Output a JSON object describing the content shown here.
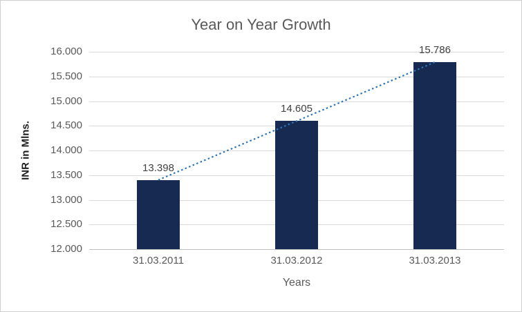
{
  "chart_data": {
    "type": "bar",
    "title": "Year on Year Growth",
    "xlabel": "Years",
    "ylabel": "INR in Mlns.",
    "categories": [
      "31.03.2011",
      "31.03.2012",
      "31.03.2013"
    ],
    "values": [
      13.398,
      14.605,
      15.786
    ],
    "data_labels": [
      "13.398",
      "14.605",
      "15.786"
    ],
    "ylim": [
      12.0,
      16.0
    ],
    "ytick_step": 0.5,
    "ytick_labels": [
      "12.000",
      "12.500",
      "13.000",
      "13.500",
      "14.000",
      "14.500",
      "15.000",
      "15.500",
      "16.000"
    ],
    "grid": true,
    "legend": "none",
    "trendline": true,
    "colors": {
      "bar": "#162a52",
      "trendline": "#2e75b6",
      "gridline": "#d9d9d9",
      "axis_line": "#bfbfbf",
      "tick_text": "#595959",
      "title_text": "#595959",
      "data_label_text": "#404040"
    }
  }
}
